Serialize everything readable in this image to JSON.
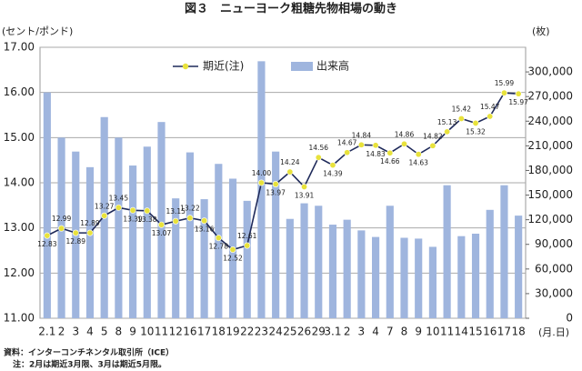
{
  "chart_data": {
    "type": "bar-line",
    "title": "図３　ニューヨーク粗糖先物相場の動き",
    "y_label": "(セント/ポンド)",
    "y2_label": "(枚)",
    "x_label": "(月.日)",
    "source": "資料：インターコンチネンタル取引所（ICE）",
    "note": "注：2月は期近3月限、3月は期近5月限。",
    "categories": [
      "2.1",
      "2",
      "3",
      "4",
      "5",
      "8",
      "9",
      "10",
      "11",
      "12",
      "16",
      "17",
      "18",
      "19",
      "22",
      "23",
      "24",
      "25",
      "26",
      "29",
      "3.1",
      "2",
      "3",
      "4",
      "7",
      "8",
      "9",
      "10",
      "11",
      "14",
      "15",
      "16",
      "17",
      "18"
    ],
    "series": [
      {
        "name": "出来高",
        "type": "bar",
        "axis": "y2",
        "color": "#9fb5de",
        "values": [
          275000,
          220000,
          203000,
          184000,
          245000,
          220000,
          186000,
          209000,
          239000,
          146000,
          202000,
          145000,
          188000,
          170000,
          143000,
          313000,
          203000,
          121000,
          140000,
          137000,
          114000,
          120000,
          107000,
          99000,
          137000,
          98000,
          97000,
          87000,
          162000,
          100000,
          103000,
          132000,
          162000,
          125000
        ]
      },
      {
        "name": "期近(注)",
        "type": "line",
        "color": "#1f2a5a",
        "marker_color": "#e8e23c",
        "values": [
          12.83,
          12.99,
          12.89,
          12.89,
          13.27,
          13.45,
          13.39,
          13.38,
          13.07,
          13.15,
          13.22,
          13.16,
          12.78,
          12.52,
          12.61,
          14.0,
          13.97,
          14.24,
          13.91,
          14.56,
          14.39,
          14.67,
          14.84,
          14.83,
          14.66,
          14.86,
          14.63,
          14.82,
          15.13,
          15.42,
          15.32,
          15.47,
          15.99,
          15.97
        ],
        "value_labels": [
          "12.83",
          "12.99",
          "12.89",
          "12.89",
          "13.27",
          "13.45",
          "13.39",
          "13.38",
          "13.07",
          "13.15",
          "13.22",
          "13.16",
          "12.78",
          "12.52",
          "12.61",
          "14.00",
          "13.97",
          "14.24",
          "13.91",
          "14.56",
          "14.39",
          "14.67",
          "14.84",
          "14.83",
          "14.66",
          "14.86",
          "14.63",
          "14.82",
          "15.13",
          "15.42",
          "15.32",
          "15.47",
          "15.99",
          "15.97"
        ]
      }
    ],
    "ylim": [
      11,
      17
    ],
    "yticks": [
      {
        "value": 11,
        "label": "11.00"
      },
      {
        "value": 12,
        "label": "12.00"
      },
      {
        "value": 13,
        "label": "13.00"
      },
      {
        "value": 14,
        "label": "14.00"
      },
      {
        "value": 15,
        "label": "15.00"
      },
      {
        "value": 16,
        "label": "16.00"
      },
      {
        "value": 17,
        "label": "17.00"
      }
    ],
    "y2lim": [
      0,
      330000
    ],
    "y2ticks": [
      0,
      {
        "value": 30000,
        "label": "30,000"
      },
      {
        "value": 60000,
        "label": "60,000"
      },
      {
        "value": 90000,
        "label": "90,000"
      },
      {
        "value": 120000,
        "label": "120,000"
      },
      {
        "value": 150000,
        "label": "150,000"
      },
      {
        "value": 180000,
        "label": "180,000"
      },
      {
        "value": 210000,
        "label": "210,000"
      },
      {
        "value": 240000,
        "label": "240,000"
      },
      {
        "value": 270000,
        "label": "270,000"
      },
      {
        "value": 300000,
        "label": "300,000"
      }
    ],
    "grid": true
  }
}
